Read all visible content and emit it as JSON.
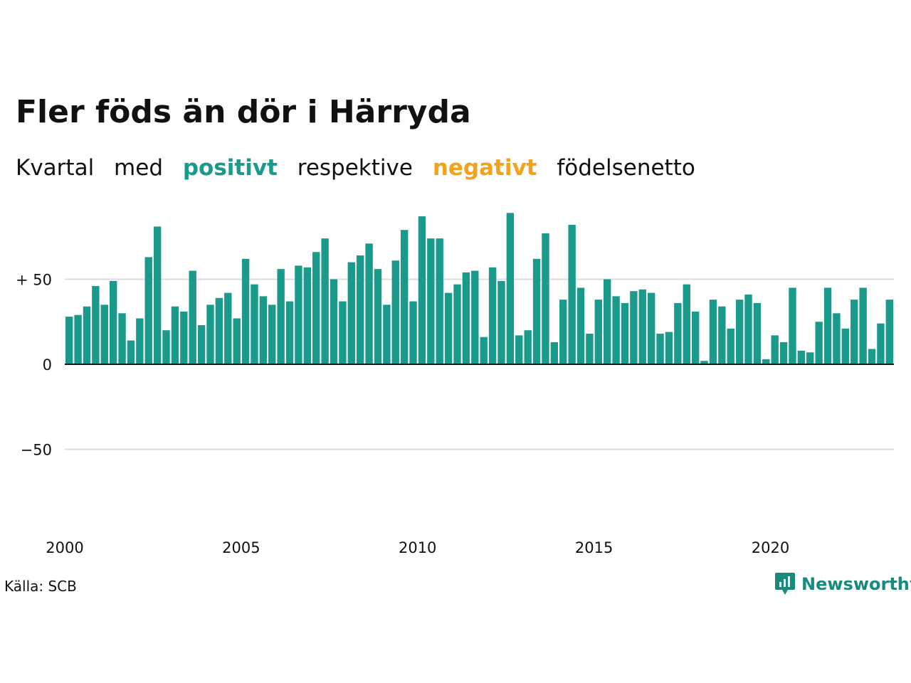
{
  "title": "Fler föds än dör i Härryda",
  "subtitle": {
    "w1": "Kvartal",
    "w2": "med",
    "positive": "positivt",
    "w3": "respektive",
    "negative": "negativt",
    "w4": "födelsenetto"
  },
  "colors": {
    "positive": "#1a9a8a",
    "negative": "#f4a11c",
    "grid": "#dddddd",
    "axis": "#111111"
  },
  "source": "Källa: SCB",
  "brand": "Newsworthy",
  "chart_data": {
    "type": "bar",
    "title": "Fler föds än dör i Härryda",
    "xlabel": "",
    "ylabel": "",
    "ylim": [
      -100,
      95
    ],
    "grid": true,
    "yticks": [
      {
        "value": 50,
        "label": "+ 50"
      },
      {
        "value": 0,
        "label": "0"
      },
      {
        "value": -50,
        "label": "−50"
      }
    ],
    "xticks": [
      "2000",
      "2005",
      "2010",
      "2015",
      "2020"
    ],
    "start_year": 2000,
    "periods_per_year": 4,
    "values": [
      28,
      29,
      34,
      46,
      35,
      49,
      30,
      14,
      27,
      63,
      81,
      20,
      34,
      31,
      55,
      23,
      35,
      39,
      42,
      27,
      62,
      47,
      40,
      35,
      56,
      37,
      58,
      57,
      66,
      74,
      50,
      37,
      60,
      64,
      71,
      56,
      35,
      61,
      79,
      37,
      87,
      74,
      74,
      42,
      47,
      54,
      55,
      16,
      57,
      49,
      89,
      17,
      20,
      62,
      77,
      13,
      38,
      82,
      45,
      18,
      38,
      50,
      40,
      36,
      43,
      44,
      42,
      18,
      19,
      36,
      47,
      31,
      2,
      38,
      34,
      21,
      38,
      41,
      36,
      3,
      17,
      13,
      45,
      8,
      7,
      25,
      45,
      30,
      21,
      38,
      45,
      9,
      24,
      38
    ]
  }
}
